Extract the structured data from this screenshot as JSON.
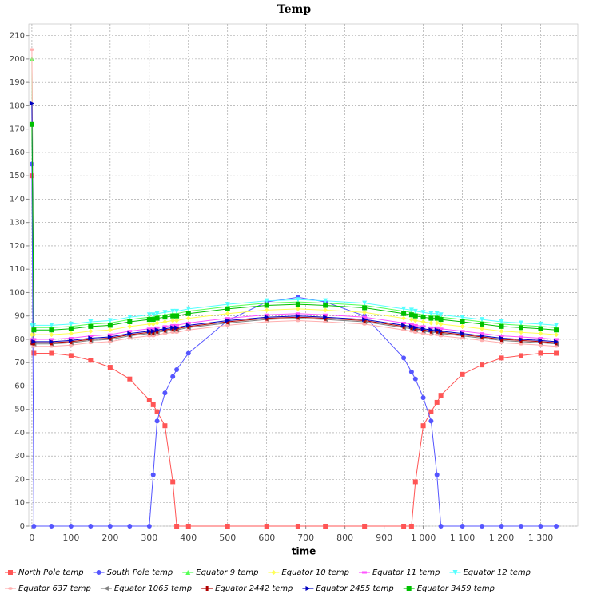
{
  "chart_data": {
    "type": "line",
    "title": "Temp",
    "x_label": "time",
    "x": [
      0,
      5,
      50,
      100,
      150,
      200,
      250,
      300,
      310,
      320,
      340,
      360,
      370,
      400,
      500,
      600,
      680,
      750,
      850,
      950,
      970,
      980,
      1000,
      1020,
      1035,
      1045,
      1100,
      1150,
      1200,
      1250,
      1300,
      1340
    ],
    "xlim": [
      -8,
      1395
    ],
    "xticks": [
      0,
      100,
      200,
      300,
      400,
      500,
      600,
      700,
      800,
      900,
      {
        "value": 1000,
        "label": "1 000"
      },
      {
        "value": 1100,
        "label": "1 100"
      },
      {
        "value": 1200,
        "label": "1 200"
      },
      {
        "value": 1300,
        "label": "1 300"
      }
    ],
    "ylim": [
      0,
      215
    ],
    "yticks": [
      0,
      10,
      20,
      30,
      40,
      50,
      60,
      70,
      80,
      90,
      100,
      110,
      120,
      130,
      140,
      150,
      160,
      170,
      180,
      190,
      200,
      210
    ],
    "grid": true,
    "legend": "bottom",
    "series": [
      {
        "name": "North Pole temp",
        "color": "#ff5555",
        "marker": "square",
        "values": [
          150,
          74,
          74,
          73,
          71,
          68,
          63,
          54,
          52,
          49,
          43,
          19,
          0,
          0,
          0,
          0,
          0,
          0,
          0,
          0,
          0,
          19,
          43,
          49,
          53,
          56,
          65,
          69,
          72,
          73,
          74,
          74
        ]
      },
      {
        "name": "South Pole temp",
        "color": "#5555ff",
        "marker": "circle",
        "values": [
          155,
          0,
          0,
          0,
          0,
          0,
          0,
          0,
          22,
          45,
          57,
          64,
          67,
          74,
          88,
          96,
          98,
          96,
          90,
          72,
          66,
          63,
          55,
          45,
          22,
          0,
          0,
          0,
          0,
          0,
          0,
          0
        ]
      },
      {
        "name": "Equator 9 temp",
        "color": "#55ff55",
        "marker": "triangle-up",
        "values": [
          200,
          85,
          85,
          85.5,
          86.5,
          87,
          88.5,
          89.5,
          89.5,
          90,
          90.5,
          91,
          91,
          92,
          94,
          95.5,
          96,
          95.5,
          94.5,
          92,
          91.5,
          91,
          90.5,
          90,
          90,
          89.5,
          88.5,
          87.5,
          86.5,
          86,
          85.5,
          85
        ]
      },
      {
        "name": "Equator 10 temp",
        "color": "#ffff55",
        "marker": "diamond",
        "values": [
          82,
          82,
          82,
          82.5,
          83.5,
          84,
          85.5,
          86.5,
          86.5,
          87,
          87.5,
          88,
          88,
          89,
          91,
          92.5,
          93,
          92.5,
          91.5,
          89,
          88.5,
          88,
          87.5,
          87,
          87,
          86.5,
          85.5,
          84.5,
          83.5,
          83,
          82.5,
          82
        ]
      },
      {
        "name": "Equator 11 temp",
        "color": "#ff55ff",
        "marker": "rect-h",
        "values": [
          80,
          80,
          80,
          80.5,
          81.5,
          82,
          83.5,
          84.5,
          84.5,
          85,
          85.5,
          86,
          86,
          87,
          89,
          90.5,
          91,
          90.5,
          89.5,
          87,
          86.5,
          86,
          85.5,
          85,
          85,
          84.5,
          83.5,
          82.5,
          81.5,
          81,
          80.5,
          80
        ]
      },
      {
        "name": "Equator 12 temp",
        "color": "#55ffff",
        "marker": "triangle-down",
        "values": [
          86,
          86,
          86,
          86.5,
          87.5,
          88,
          89.5,
          90.5,
          90.5,
          91,
          91.5,
          92,
          92,
          93,
          95,
          96.5,
          97,
          96.5,
          95.5,
          93,
          92.5,
          92,
          91.5,
          91,
          91,
          90.5,
          89.5,
          88.5,
          87.5,
          87,
          86.5,
          86
        ]
      },
      {
        "name": "Equator 637 temp",
        "color": "#ffafaf",
        "marker": "ellipse",
        "values": [
          204,
          77,
          77,
          77.5,
          78.5,
          79,
          80.5,
          81.5,
          81.5,
          82,
          82.5,
          83,
          83,
          84,
          86,
          87.5,
          88,
          87.5,
          86.5,
          84,
          83.5,
          83,
          82.5,
          82,
          82,
          81.5,
          80.5,
          79.5,
          78.5,
          78,
          77.5,
          77
        ]
      },
      {
        "name": "Equator 1065 temp",
        "color": "#808080",
        "marker": "triangle-left",
        "values": [
          78,
          78,
          78,
          78.5,
          79.5,
          80,
          81.5,
          82.5,
          82.5,
          83,
          83.5,
          84,
          84,
          85,
          87,
          88.5,
          89,
          88.5,
          87.5,
          85,
          84.5,
          84,
          83.5,
          83,
          83,
          82.5,
          81.5,
          80.5,
          79.5,
          79,
          78.5,
          78
        ]
      },
      {
        "name": "Equator 2442 temp",
        "color": "#b00000",
        "marker": "rect-v",
        "values": [
          78.5,
          78.5,
          78.5,
          79,
          80,
          80.5,
          82,
          83,
          83,
          83.5,
          84,
          84.5,
          84.5,
          85.5,
          87.5,
          89,
          89.5,
          89,
          88,
          85.5,
          85,
          84.5,
          84,
          83.5,
          83.5,
          83,
          82,
          81,
          80,
          79.5,
          79,
          78.5
        ]
      },
      {
        "name": "Equator 2455 temp",
        "color": "#0000c0",
        "marker": "triangle-right",
        "values": [
          181,
          79,
          79,
          79.5,
          80.5,
          81,
          82.5,
          83.5,
          83.5,
          84,
          84.5,
          85,
          85,
          86,
          88,
          89.5,
          90,
          89.5,
          88.5,
          86,
          85.5,
          85,
          84.5,
          84,
          84,
          83.5,
          82.5,
          81.5,
          80.5,
          80,
          79.5,
          79
        ]
      },
      {
        "name": "Equator 3459 temp",
        "color": "#00c000",
        "marker": "square",
        "values": [
          172,
          84,
          84,
          84.5,
          85.5,
          86,
          87.5,
          88.5,
          88.5,
          89,
          89.5,
          90,
          90,
          91,
          93,
          94.5,
          95,
          94.5,
          93.5,
          91,
          90.5,
          90,
          89.5,
          89,
          89,
          88.5,
          87.5,
          86.5,
          85.5,
          85,
          84.5,
          84
        ]
      }
    ]
  }
}
